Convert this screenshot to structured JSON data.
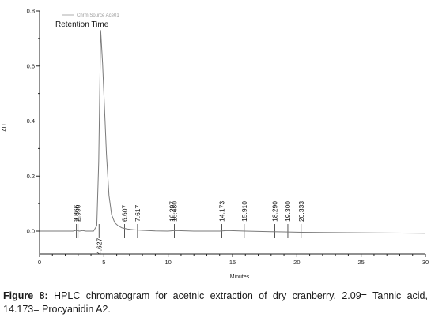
{
  "chart_data": {
    "type": "line",
    "xlabel": "Minutes",
    "ylabel": "AU",
    "xlim": [
      0,
      30
    ],
    "ylim": [
      -0.1,
      0.8
    ],
    "x_ticks": [
      0,
      5,
      10,
      15,
      20,
      25,
      30
    ],
    "y_ticks": [
      0.0,
      0.2,
      0.4,
      0.6,
      0.8
    ],
    "y_tick_labels": [
      "0.0",
      "0.2",
      "0.4",
      "0.6",
      "0.8"
    ],
    "grid": false,
    "annotations": [
      "Retention Time",
      "Chrm Source Ace01"
    ],
    "series": [
      {
        "color": "#7a7a7a",
        "x": [
          0,
          2.6,
          2.85,
          3.1,
          3.35,
          3.6,
          4.2,
          4.45,
          4.6,
          4.75,
          4.9,
          5.05,
          5.2,
          5.4,
          5.6,
          5.85,
          6.1,
          6.4,
          6.8,
          7.3,
          8.0,
          9.0,
          10.0,
          10.5,
          12,
          14,
          14.6,
          16,
          18,
          19,
          20,
          22,
          25,
          30
        ],
        "y": [
          0.0,
          0.0,
          0.003,
          0.0,
          0.002,
          0.0,
          0.0,
          0.02,
          0.25,
          0.73,
          0.61,
          0.45,
          0.28,
          0.13,
          0.06,
          0.03,
          0.02,
          0.012,
          0.008,
          0.005,
          0.003,
          0.001,
          0.0,
          0.002,
          0.0,
          0.0,
          0.002,
          0.0,
          -0.002,
          -0.003,
          -0.004,
          -0.005,
          -0.006,
          -0.008
        ]
      }
    ],
    "peaks": [
      {
        "label": "2.866",
        "rt": 2.866,
        "above": true
      },
      {
        "label": "2.990",
        "rt": 2.99,
        "above": true
      },
      {
        "label": "4.627",
        "rt": 4.627,
        "above": false
      },
      {
        "label": "6.607",
        "rt": 6.607,
        "above": true
      },
      {
        "label": "7.617",
        "rt": 7.617,
        "above": true
      },
      {
        "label": "10.297",
        "rt": 10.297,
        "above": true
      },
      {
        "label": "10.480",
        "rt": 10.48,
        "above": true
      },
      {
        "label": "14.173",
        "rt": 14.173,
        "above": true
      },
      {
        "label": "15.910",
        "rt": 15.91,
        "above": true
      },
      {
        "label": "18.290",
        "rt": 18.29,
        "above": true
      },
      {
        "label": "19.300",
        "rt": 19.3,
        "above": true
      },
      {
        "label": "20.333",
        "rt": 20.333,
        "above": true
      }
    ]
  },
  "caption": {
    "label": "Figure 8:",
    "text": " HPLC chromatogram for acetnic extraction of dry cranberry. 2.09= Tannic acid, 14.173= Procyanidin A2."
  }
}
